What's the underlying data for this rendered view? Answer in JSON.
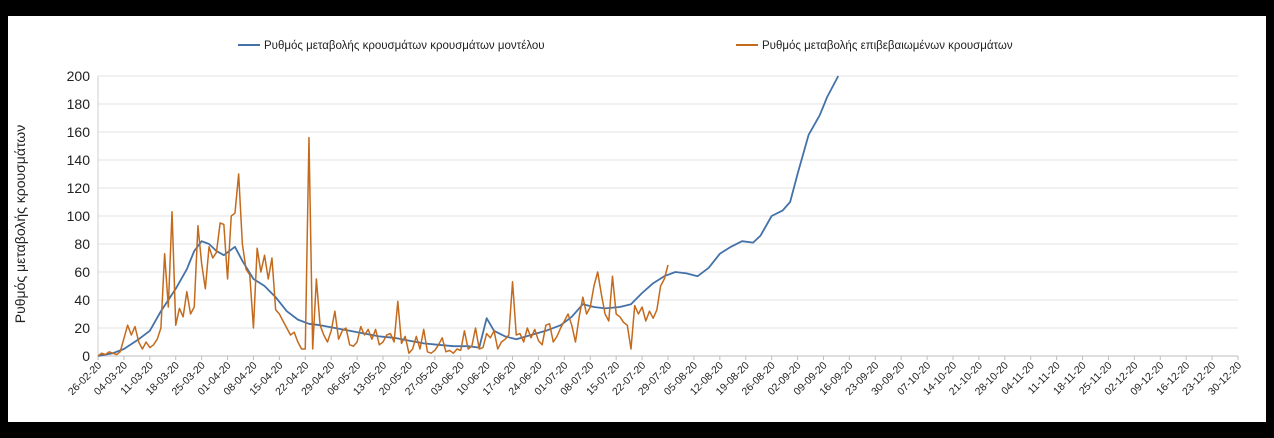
{
  "chart_data": {
    "type": "line",
    "title": "",
    "xlabel": "",
    "ylabel": "Ρυθμός μεταβολής κρουσμάτων",
    "ylim": [
      0,
      200
    ],
    "yticks": [
      0,
      20,
      40,
      60,
      80,
      100,
      120,
      140,
      160,
      180,
      200
    ],
    "grid": true,
    "legend_position": "top",
    "x_tick_labels": [
      "26-02-20",
      "04-03-20",
      "11-03-20",
      "18-03-20",
      "25-03-20",
      "01-04-20",
      "08-04-20",
      "15-04-20",
      "22-04-20",
      "29-04-20",
      "06-05-20",
      "13-05-20",
      "20-05-20",
      "27-05-20",
      "03-06-20",
      "10-06-20",
      "17-06-20",
      "24-06-20",
      "01-07-20",
      "08-07-20",
      "15-07-20",
      "22-07-20",
      "29-07-20",
      "05-08-20",
      "12-08-20",
      "19-08-20",
      "26-08-20",
      "02-09-20",
      "09-09-20",
      "16-09-20",
      "23-09-20",
      "30-09-20",
      "07-10-20",
      "14-10-20",
      "21-10-20",
      "28-10-20",
      "04-11-20",
      "11-11-20",
      "18-11-20",
      "25-11-20",
      "02-12-20",
      "09-12-20",
      "16-12-20",
      "23-12-20",
      "30-12-20"
    ],
    "series": [
      {
        "name": "Ρυθμός μεταβολής κρουσμάτων κρουσμάτων μοντέλου",
        "color": "#4472a8",
        "points": [
          [
            "26-02-20",
            0
          ],
          [
            "01-03-20",
            2
          ],
          [
            "04-03-20",
            5
          ],
          [
            "08-03-20",
            12
          ],
          [
            "11-03-20",
            18
          ],
          [
            "14-03-20",
            32
          ],
          [
            "18-03-20",
            48
          ],
          [
            "21-03-20",
            62
          ],
          [
            "23-03-20",
            75
          ],
          [
            "25-03-20",
            82
          ],
          [
            "27-03-20",
            80
          ],
          [
            "29-03-20",
            75
          ],
          [
            "31-03-20",
            72
          ],
          [
            "03-04-20",
            78
          ],
          [
            "05-04-20",
            68
          ],
          [
            "08-04-20",
            55
          ],
          [
            "11-04-20",
            50
          ],
          [
            "14-04-20",
            42
          ],
          [
            "17-04-20",
            32
          ],
          [
            "20-04-20",
            26
          ],
          [
            "23-04-20",
            23
          ],
          [
            "26-04-20",
            22
          ],
          [
            "30-04-20",
            20
          ],
          [
            "04-05-20",
            18
          ],
          [
            "08-05-20",
            16
          ],
          [
            "12-05-20",
            14
          ],
          [
            "16-05-20",
            13
          ],
          [
            "20-05-20",
            11
          ],
          [
            "24-05-20",
            9
          ],
          [
            "28-05-20",
            8
          ],
          [
            "01-06-20",
            7
          ],
          [
            "05-06-20",
            7
          ],
          [
            "08-06-20",
            6
          ],
          [
            "10-06-20",
            27
          ],
          [
            "12-06-20",
            18
          ],
          [
            "15-06-20",
            14
          ],
          [
            "18-06-20",
            12
          ],
          [
            "22-06-20",
            15
          ],
          [
            "26-06-20",
            18
          ],
          [
            "30-06-20",
            22
          ],
          [
            "03-07-20",
            28
          ],
          [
            "06-07-20",
            37
          ],
          [
            "09-07-20",
            35
          ],
          [
            "12-07-20",
            34
          ],
          [
            "16-07-20",
            35
          ],
          [
            "19-07-20",
            37
          ],
          [
            "22-07-20",
            45
          ],
          [
            "25-07-20",
            52
          ],
          [
            "28-07-20",
            57
          ],
          [
            "31-07-20",
            60
          ],
          [
            "03-08-20",
            59
          ],
          [
            "06-08-20",
            57
          ],
          [
            "09-08-20",
            63
          ],
          [
            "12-08-20",
            73
          ],
          [
            "15-08-20",
            78
          ],
          [
            "18-08-20",
            82
          ],
          [
            "21-08-20",
            81
          ],
          [
            "23-08-20",
            86
          ],
          [
            "26-08-20",
            100
          ],
          [
            "29-08-20",
            104
          ],
          [
            "31-08-20",
            110
          ],
          [
            "02-09-20",
            130
          ],
          [
            "05-09-20",
            158
          ],
          [
            "08-09-20",
            172
          ],
          [
            "10-09-20",
            185
          ],
          [
            "13-09-20",
            200
          ]
        ]
      },
      {
        "name": "Ρυθμός μεταβολής επιβεβαιωμένων κρουσμάτων",
        "color": "#c46a1c",
        "points": [
          [
            "26-02-20",
            0
          ],
          [
            "27-02-20",
            2
          ],
          [
            "28-02-20",
            1
          ],
          [
            "29-02-20",
            3
          ],
          [
            "01-03-20",
            2
          ],
          [
            "02-03-20",
            1
          ],
          [
            "03-03-20",
            3
          ],
          [
            "05-03-20",
            22
          ],
          [
            "06-03-20",
            15
          ],
          [
            "07-03-20",
            21
          ],
          [
            "08-03-20",
            10
          ],
          [
            "09-03-20",
            5
          ],
          [
            "10-03-20",
            10
          ],
          [
            "11-03-20",
            6
          ],
          [
            "12-03-20",
            8
          ],
          [
            "13-03-20",
            12
          ],
          [
            "14-03-20",
            20
          ],
          [
            "15-03-20",
            73
          ],
          [
            "16-03-20",
            35
          ],
          [
            "17-03-20",
            103
          ],
          [
            "18-03-20",
            22
          ],
          [
            "19-03-20",
            34
          ],
          [
            "20-03-20",
            28
          ],
          [
            "21-03-20",
            46
          ],
          [
            "22-03-20",
            30
          ],
          [
            "23-03-20",
            35
          ],
          [
            "24-03-20",
            93
          ],
          [
            "25-03-20",
            66
          ],
          [
            "26-03-20",
            48
          ],
          [
            "27-03-20",
            78
          ],
          [
            "28-03-20",
            70
          ],
          [
            "29-03-20",
            74
          ],
          [
            "30-03-20",
            95
          ],
          [
            "31-03-20",
            94
          ],
          [
            "01-04-20",
            55
          ],
          [
            "02-04-20",
            100
          ],
          [
            "03-04-20",
            102
          ],
          [
            "04-04-20",
            130
          ],
          [
            "05-04-20",
            80
          ],
          [
            "06-04-20",
            62
          ],
          [
            "07-04-20",
            58
          ],
          [
            "08-04-20",
            20
          ],
          [
            "09-04-20",
            77
          ],
          [
            "10-04-20",
            60
          ],
          [
            "11-04-20",
            72
          ],
          [
            "12-04-20",
            55
          ],
          [
            "13-04-20",
            70
          ],
          [
            "14-04-20",
            33
          ],
          [
            "15-04-20",
            30
          ],
          [
            "16-04-20",
            25
          ],
          [
            "17-04-20",
            20
          ],
          [
            "18-04-20",
            15
          ],
          [
            "19-04-20",
            17
          ],
          [
            "20-04-20",
            10
          ],
          [
            "21-04-20",
            5
          ],
          [
            "22-04-20",
            5
          ],
          [
            "23-04-20",
            156
          ],
          [
            "24-04-20",
            5
          ],
          [
            "25-04-20",
            55
          ],
          [
            "26-04-20",
            22
          ],
          [
            "27-04-20",
            15
          ],
          [
            "28-04-20",
            10
          ],
          [
            "29-04-20",
            18
          ],
          [
            "30-04-20",
            32
          ],
          [
            "01-05-20",
            12
          ],
          [
            "02-05-20",
            18
          ],
          [
            "03-05-20",
            20
          ],
          [
            "04-05-20",
            8
          ],
          [
            "05-05-20",
            7
          ],
          [
            "06-05-20",
            10
          ],
          [
            "07-05-20",
            21
          ],
          [
            "08-05-20",
            15
          ],
          [
            "09-05-20",
            19
          ],
          [
            "10-05-20",
            12
          ],
          [
            "11-05-20",
            19
          ],
          [
            "12-05-20",
            8
          ],
          [
            "13-05-20",
            10
          ],
          [
            "14-05-20",
            15
          ],
          [
            "15-05-20",
            16
          ],
          [
            "16-05-20",
            10
          ],
          [
            "17-05-20",
            39
          ],
          [
            "18-05-20",
            9
          ],
          [
            "19-05-20",
            14
          ],
          [
            "20-05-20",
            2
          ],
          [
            "21-05-20",
            5
          ],
          [
            "22-05-20",
            14
          ],
          [
            "23-05-20",
            5
          ],
          [
            "24-05-20",
            19
          ],
          [
            "25-05-20",
            3
          ],
          [
            "26-05-20",
            2
          ],
          [
            "27-05-20",
            4
          ],
          [
            "28-05-20",
            8
          ],
          [
            "29-05-20",
            13
          ],
          [
            "30-05-20",
            3
          ],
          [
            "31-05-20",
            4
          ],
          [
            "01-06-20",
            2
          ],
          [
            "02-06-20",
            5
          ],
          [
            "03-06-20",
            4
          ],
          [
            "04-06-20",
            18
          ],
          [
            "05-06-20",
            5
          ],
          [
            "06-06-20",
            7
          ],
          [
            "07-06-20",
            20
          ],
          [
            "08-06-20",
            5
          ],
          [
            "09-06-20",
            6
          ],
          [
            "10-06-20",
            16
          ],
          [
            "11-06-20",
            13
          ],
          [
            "12-06-20",
            18
          ],
          [
            "13-06-20",
            5
          ],
          [
            "14-06-20",
            10
          ],
          [
            "15-06-20",
            12
          ],
          [
            "16-06-20",
            15
          ],
          [
            "17-06-20",
            53
          ],
          [
            "18-06-20",
            15
          ],
          [
            "19-06-20",
            16
          ],
          [
            "20-06-20",
            10
          ],
          [
            "21-06-20",
            20
          ],
          [
            "22-06-20",
            13
          ],
          [
            "23-06-20",
            19
          ],
          [
            "24-06-20",
            11
          ],
          [
            "25-06-20",
            8
          ],
          [
            "26-06-20",
            22
          ],
          [
            "27-06-20",
            23
          ],
          [
            "28-06-20",
            10
          ],
          [
            "29-06-20",
            14
          ],
          [
            "30-06-20",
            20
          ],
          [
            "01-07-20",
            25
          ],
          [
            "02-07-20",
            30
          ],
          [
            "03-07-20",
            22
          ],
          [
            "04-07-20",
            10
          ],
          [
            "05-07-20",
            28
          ],
          [
            "06-07-20",
            42
          ],
          [
            "07-07-20",
            30
          ],
          [
            "08-07-20",
            35
          ],
          [
            "09-07-20",
            50
          ],
          [
            "10-07-20",
            60
          ],
          [
            "11-07-20",
            44
          ],
          [
            "12-07-20",
            30
          ],
          [
            "13-07-20",
            25
          ],
          [
            "14-07-20",
            57
          ],
          [
            "15-07-20",
            30
          ],
          [
            "16-07-20",
            28
          ],
          [
            "17-07-20",
            24
          ],
          [
            "18-07-20",
            22
          ],
          [
            "19-07-20",
            5
          ],
          [
            "20-07-20",
            36
          ],
          [
            "21-07-20",
            30
          ],
          [
            "22-07-20",
            35
          ],
          [
            "23-07-20",
            25
          ],
          [
            "24-07-20",
            32
          ],
          [
            "25-07-20",
            27
          ],
          [
            "26-07-20",
            33
          ],
          [
            "27-07-20",
            50
          ],
          [
            "28-07-20",
            55
          ],
          [
            "29-07-20",
            65
          ]
        ]
      }
    ]
  }
}
